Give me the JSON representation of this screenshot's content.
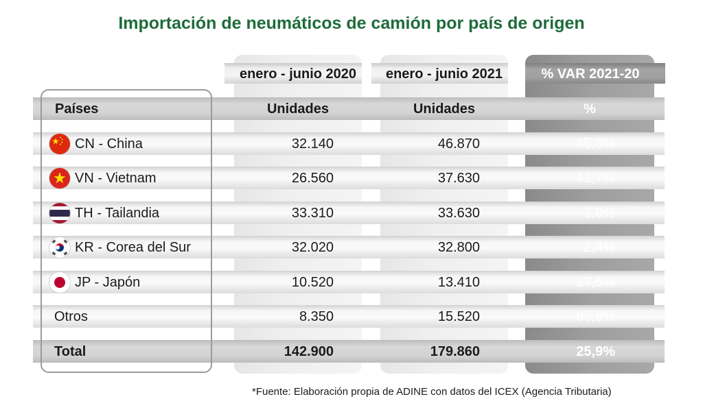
{
  "title": "Importación de neumáticos de camión por país de origen",
  "header": {
    "periods": [
      "enero - junio 2020",
      "enero - junio 2021",
      "% VAR 2021-20"
    ],
    "columns": [
      "Países",
      "Unidades",
      "Unidades",
      "%"
    ]
  },
  "rows": [
    {
      "country": "CN - China",
      "flag": "china-flag-icon",
      "v2020": "32.140",
      "v2021": "46.870",
      "var": "45,8%"
    },
    {
      "country": "VN - Vietnam",
      "flag": "vietnam-flag-icon",
      "v2020": "26.560",
      "v2021": "37.630",
      "var": "41,7%"
    },
    {
      "country": "TH - Tailandia",
      "flag": "thailand-flag-icon",
      "v2020": "33.310",
      "v2021": "33.630",
      "var": "1,0%"
    },
    {
      "country": "KR - Corea del Sur",
      "flag": "korea-flag-icon",
      "v2020": "32.020",
      "v2021": "32.800",
      "var": "2,4%"
    },
    {
      "country": "JP - Japón",
      "flag": "japan-flag-icon",
      "v2020": "10.520",
      "v2021": "13.410",
      "var": "27,5%"
    },
    {
      "country": "Otros",
      "flag": "",
      "v2020": "8.350",
      "v2021": "15.520",
      "var": "85,9%"
    }
  ],
  "total": {
    "label": "Total",
    "v2020": "142.900",
    "v2021": "179.860",
    "var": "25,9%"
  },
  "source": "*Fuente: Elaboración propia de ADINE con datos del ICEX (Agencia Tributaria)",
  "colors": {
    "title": "#1e6b3a",
    "var_column": "#9e9e9e",
    "china_red": "#de2910",
    "china_yellow": "#ffde00",
    "japan_red": "#bc002d",
    "thailand_blue": "#2d2a4a"
  },
  "chart_data": {
    "type": "table",
    "title": "Importación de neumáticos de camión por país de origen",
    "columns": [
      "Países",
      "enero - junio 2020 (Unidades)",
      "enero - junio 2021 (Unidades)",
      "% VAR 2021-20 (%)"
    ],
    "categories": [
      "CN - China",
      "VN - Vietnam",
      "TH - Tailandia",
      "KR - Corea del Sur",
      "JP - Japón",
      "Otros",
      "Total"
    ],
    "series": [
      {
        "name": "enero - junio 2020",
        "values": [
          32140,
          26560,
          33310,
          32020,
          10520,
          8350,
          142900
        ]
      },
      {
        "name": "enero - junio 2021",
        "values": [
          46870,
          37630,
          33630,
          32800,
          13410,
          15520,
          179860
        ]
      },
      {
        "name": "% VAR 2021-20",
        "values": [
          45.8,
          41.7,
          1.0,
          2.4,
          27.5,
          85.9,
          25.9
        ]
      }
    ]
  }
}
